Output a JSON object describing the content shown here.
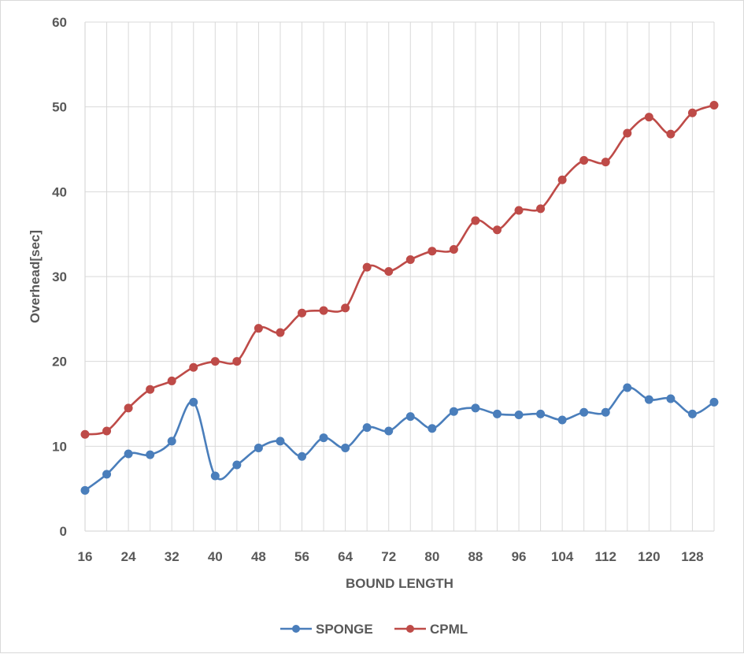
{
  "chart_data": {
    "type": "line",
    "title": "",
    "xlabel": "BOUND LENGTH",
    "ylabel": "Overhead[sec]",
    "ylim": [
      0,
      60
    ],
    "yticks": [
      0,
      10,
      20,
      30,
      40,
      50,
      60
    ],
    "xticks": [
      16,
      24,
      32,
      40,
      48,
      56,
      64,
      72,
      80,
      88,
      96,
      104,
      112,
      120,
      128
    ],
    "xlim": [
      16,
      132
    ],
    "x": [
      16,
      20,
      24,
      28,
      32,
      36,
      40,
      44,
      48,
      52,
      56,
      60,
      64,
      68,
      72,
      76,
      80,
      84,
      88,
      92,
      96,
      100,
      104,
      108,
      112,
      116,
      120,
      124,
      128,
      132
    ],
    "grid": true,
    "legend_position": "bottom",
    "series": [
      {
        "name": "SPONGE",
        "color": "#4a7ebb",
        "values": [
          4.8,
          6.7,
          9.1,
          9.0,
          10.6,
          15.2,
          6.5,
          7.8,
          9.8,
          10.6,
          8.8,
          11.0,
          9.8,
          12.2,
          11.8,
          13.5,
          12.1,
          14.1,
          14.5,
          13.8,
          13.7,
          13.8,
          13.1,
          14.0,
          14.0,
          16.9,
          15.5,
          15.6,
          13.8,
          15.2
        ]
      },
      {
        "name": "CPML",
        "color": "#be4b48",
        "values": [
          11.4,
          11.8,
          14.5,
          16.7,
          17.7,
          19.3,
          20.0,
          20.0,
          23.9,
          23.4,
          25.7,
          26.0,
          26.3,
          31.1,
          30.6,
          32.0,
          33.0,
          33.2,
          36.6,
          35.5,
          37.8,
          38.0,
          41.4,
          43.7,
          43.5,
          46.9,
          48.8,
          46.8,
          49.3,
          50.2
        ]
      }
    ]
  }
}
